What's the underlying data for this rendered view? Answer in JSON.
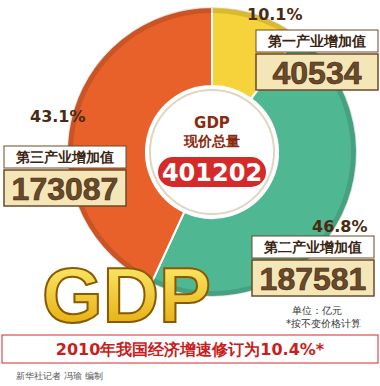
{
  "chart_data": {
    "type": "pie",
    "title": "2010年我国经济增速修订为10.4%*",
    "center_title": "GDP",
    "center_subtitle": "现价总量",
    "total": 401202,
    "categories": [
      "第一产业增加值",
      "第二产业增加值",
      "第三产业增加值"
    ],
    "values": [
      10.1,
      46.8,
      43.1
    ],
    "value_labels": [
      "10.1%",
      "46.8%",
      "43.1%"
    ],
    "amounts": [
      40534,
      187581,
      173087
    ],
    "colors": [
      "#f6d33a",
      "#4fb892",
      "#e8602a"
    ],
    "data_labels": true,
    "logo_text": "GDP",
    "unit": "单位：亿元",
    "note": "*按不变价格计算",
    "credit": "新华社记者 冯瑜 编制"
  }
}
